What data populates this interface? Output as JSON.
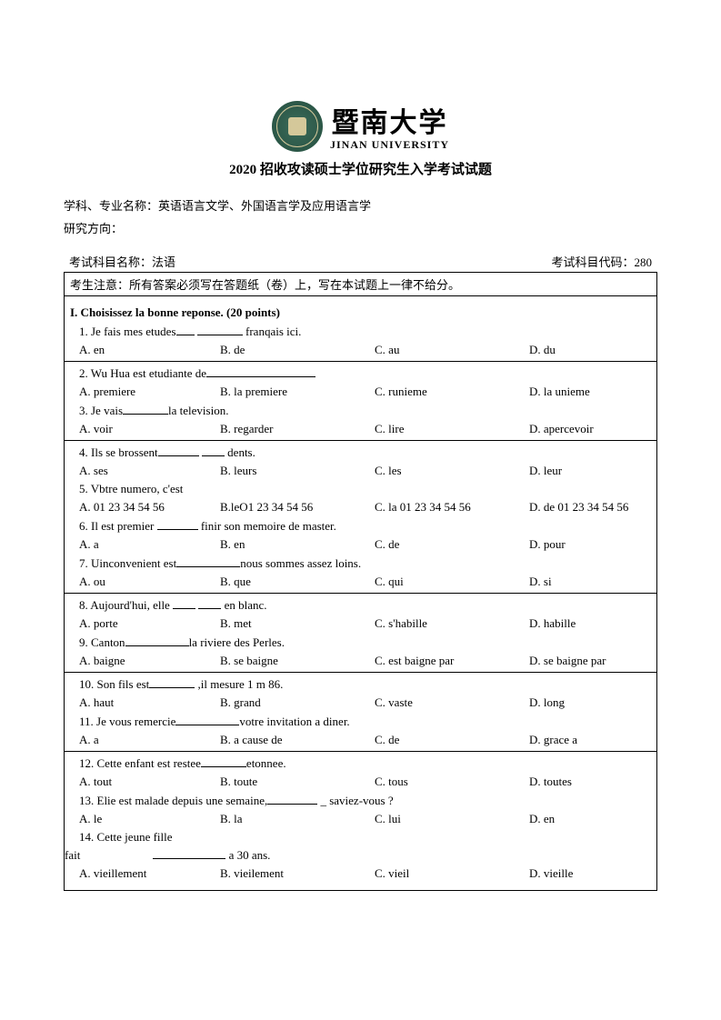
{
  "header": {
    "uni_cn": "暨南大学",
    "uni_en": "JINAN UNIVERSITY",
    "subtitle": "2020 招收攻读硕士学位研究生入学考试试题"
  },
  "meta": {
    "line1": "学科、专业名称：英语语言文学、外国语言学及应用语言学",
    "line2": "研究方向：",
    "subject_label": "考试科目名称：法语",
    "code_label": "考试科目代码：280"
  },
  "notice": "考生注意：所有答案必须写在答题纸（卷）上，写在本试题上一律不给分。",
  "section1": {
    "title": "I. Choisissez la bonne reponse. (20 points)",
    "questions": [
      {
        "n": "1.",
        "text_a": "Je fais mes etudes",
        "text_b": " franqais ici.",
        "opts": [
          "A. en",
          "B. de",
          "C. au",
          "D. du"
        ]
      },
      {
        "n": "2.",
        "text_a": "Wu Hua est etudiante de",
        "text_b": "",
        "opts": [
          "A. premiere",
          "B. la premiere",
          "C. runieme",
          "D. la unieme"
        ]
      },
      {
        "n": "3.",
        "text_a": "Je vais",
        "text_b": "la television.",
        "opts": [
          "A. voir",
          "B. regarder",
          "C. lire",
          "D. apercevoir"
        ]
      },
      {
        "n": "4.",
        "text_a": "Ils se brossent",
        "text_b": " dents.",
        "opts": [
          "A. ses",
          "B. leurs",
          "C. les",
          "D. leur"
        ]
      },
      {
        "n": "5.",
        "text_a": "Vbtre numero, c'est",
        "text_b": "",
        "opts": [
          "A. 01 23 34 54 56",
          "B.leO1 23 34 54 56",
          "C. la 01 23 34 54 56",
          "D. de 01 23 34 54 56"
        ]
      },
      {
        "n": "6.",
        "text_a": "Il est premier ",
        "text_b": " finir son memoire de master.",
        "opts": [
          "A. a",
          "B. en",
          "C. de",
          "D. pour"
        ]
      },
      {
        "n": "7.",
        "text_a": "Uinconvenient est",
        "text_b": "nous sommes assez loins.",
        "opts": [
          "A. ou",
          "B. que",
          "C. qui",
          "D. si"
        ]
      },
      {
        "n": "8.",
        "text_a": "Aujourd'hui, elle ",
        "text_b": " en blanc.",
        "opts": [
          "A. porte",
          "B. met",
          "C. s'habille",
          "D. habille"
        ]
      },
      {
        "n": "9.",
        "text_a": "Canton",
        "text_b": "la riviere des Perles.",
        "opts": [
          "A. baigne",
          "B. se baigne",
          "C. est baigne par",
          "D. se baigne par"
        ]
      },
      {
        "n": "10.",
        "text_a": "Son fils est",
        "text_b": " ,il mesure 1 m 86.",
        "opts": [
          "A. haut",
          "B. grand",
          "C. vaste",
          "D. long"
        ]
      },
      {
        "n": "11.",
        "text_a": "Je vous remercie",
        "text_b": "votre invitation a diner.",
        "opts": [
          "A. a",
          "B. a cause de",
          "C. de",
          "D. grace a"
        ]
      },
      {
        "n": "12.",
        "text_a": "Cette enfant est restee",
        "text_b": "etonnee.",
        "opts": [
          "A. tout",
          "B. toute",
          "C. tous",
          "D. toutes"
        ]
      },
      {
        "n": "13.",
        "text_a": "Elie est malade depuis une semaine,",
        "text_b": " saviez-vous ?",
        "opts": [
          "A. le",
          "B. la",
          "C. lui",
          "D. en"
        ]
      },
      {
        "n": "14.",
        "text_a": "Cette jeune fille",
        "text_b": " a 30 ans.",
        "extra": "fait",
        "opts": [
          "A. vieillement",
          "B. vieilement",
          "C. vieil",
          "D. vieille"
        ]
      }
    ]
  }
}
